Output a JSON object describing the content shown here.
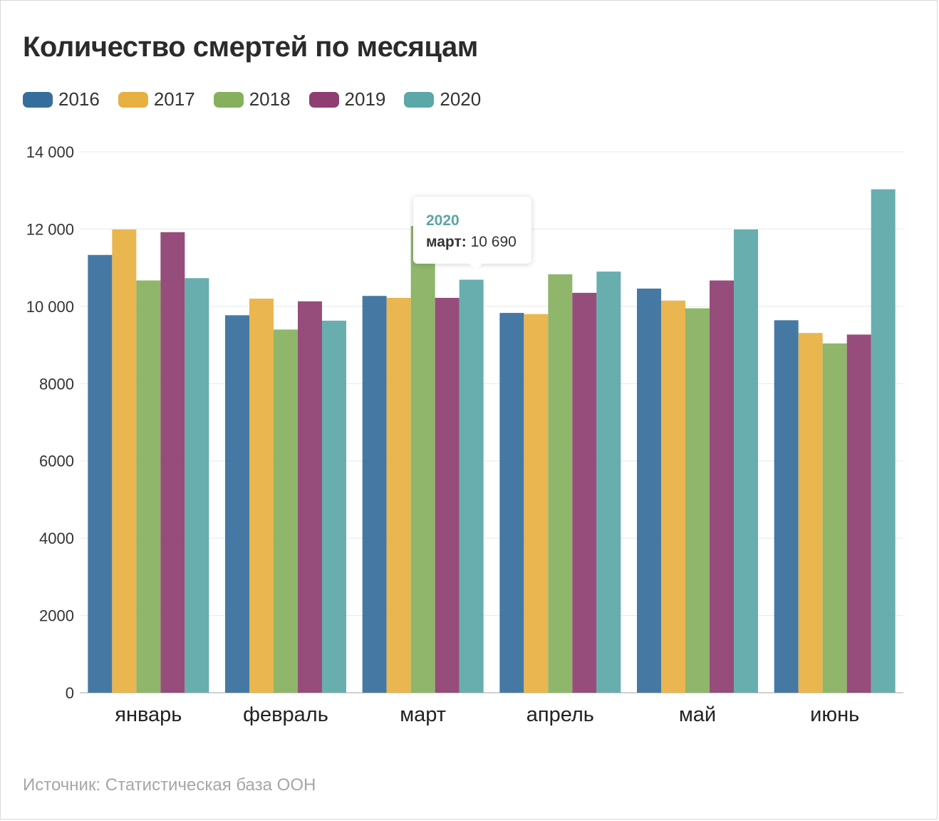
{
  "title": "Количество смертей по месяцам",
  "source": "Источник: Статистическая база ООН",
  "tooltip": {
    "year": "2020",
    "month": "март:",
    "value": "10 690"
  },
  "chart_data": {
    "type": "bar",
    "title": "Количество смертей по месяцам",
    "xlabel": "",
    "ylabel": "",
    "ylim": [
      0,
      14000
    ],
    "yticks": [
      0,
      2000,
      4000,
      6000,
      8000,
      10000,
      12000,
      14000
    ],
    "ytick_labels": [
      "0",
      "2000",
      "4000",
      "6000",
      "8000",
      "10 000",
      "12 000",
      "14 000"
    ],
    "grid": true,
    "legend": "top-left",
    "categories": [
      "январь",
      "февраль",
      "март",
      "апрель",
      "май",
      "июнь"
    ],
    "series": [
      {
        "name": "2016",
        "color": "#356e9c",
        "values": [
          11330,
          9770,
          10270,
          9830,
          10460,
          9640
        ]
      },
      {
        "name": "2017",
        "color": "#e8b041",
        "values": [
          11990,
          10200,
          10220,
          9800,
          10150,
          9310
        ]
      },
      {
        "name": "2018",
        "color": "#86b05e",
        "values": [
          10670,
          9400,
          12080,
          10830,
          9950,
          9040
        ]
      },
      {
        "name": "2019",
        "color": "#8e3e70",
        "values": [
          11920,
          10130,
          10220,
          10350,
          10670,
          9270
        ]
      },
      {
        "name": "2020",
        "color": "#5ca7a8",
        "values": [
          10730,
          9630,
          10690,
          10900,
          11990,
          13030
        ]
      }
    ]
  }
}
